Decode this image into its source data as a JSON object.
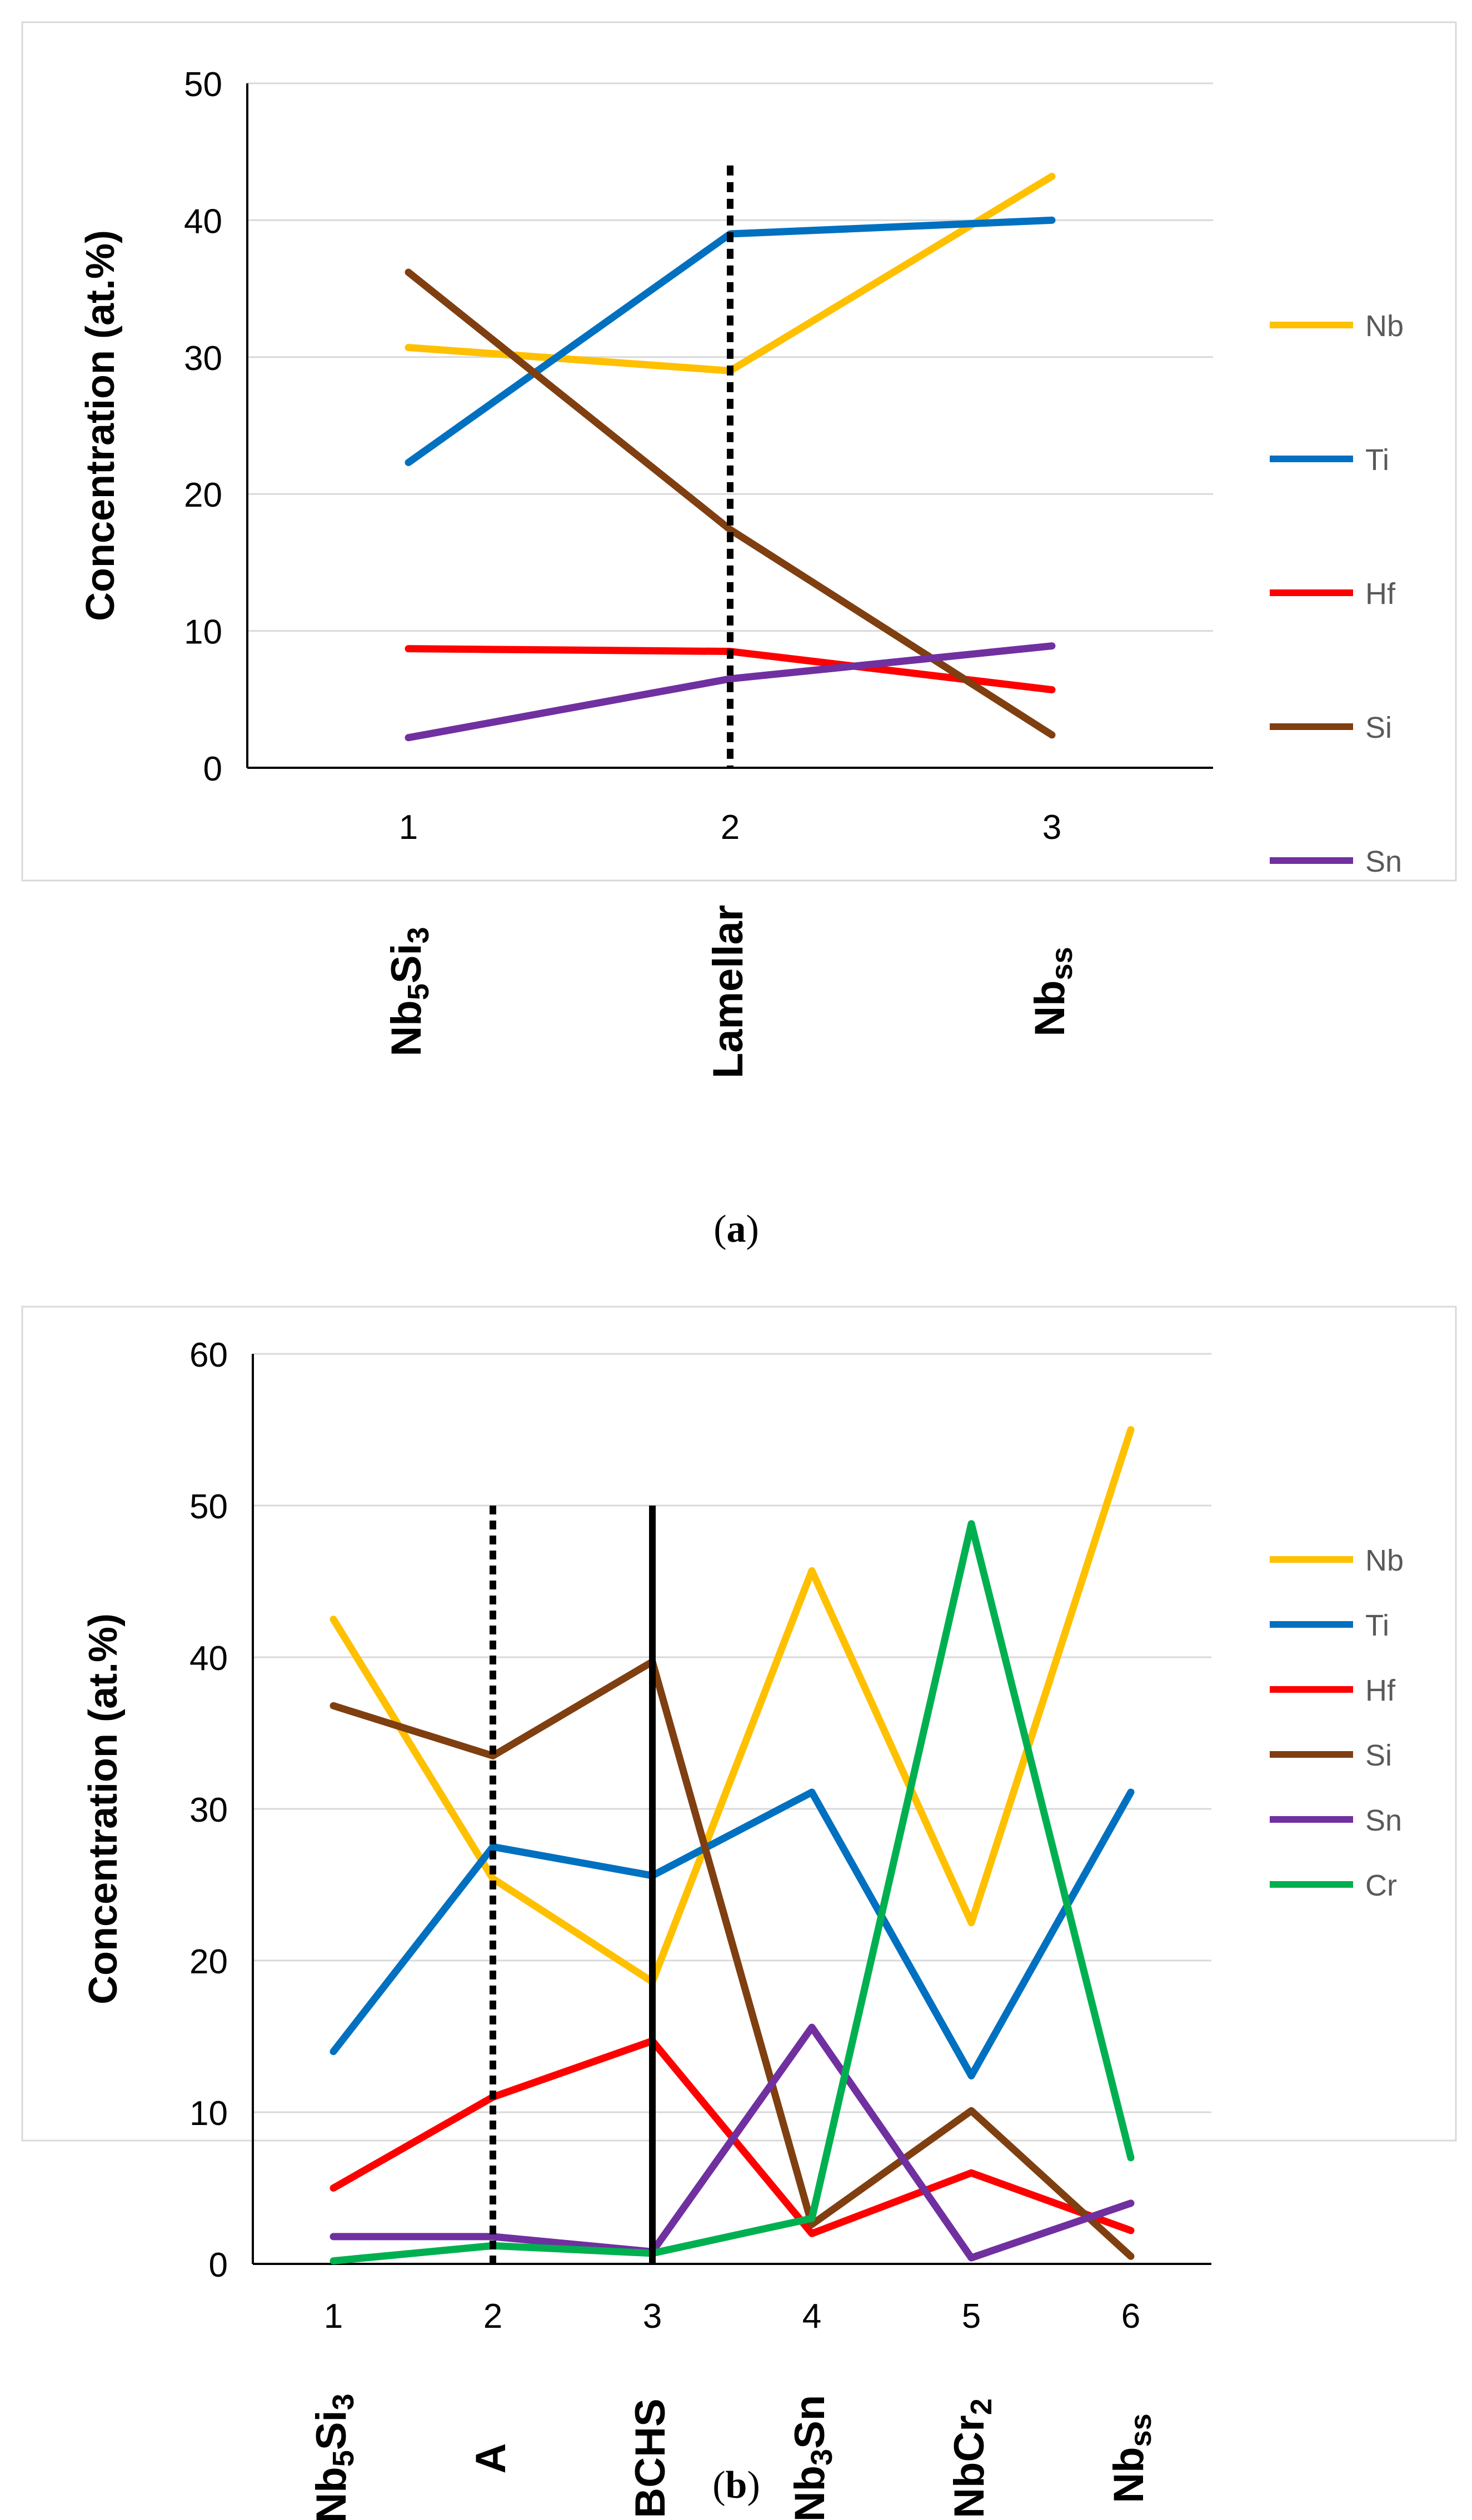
{
  "panels": [
    {
      "caption_open": "(",
      "caption_letter": "a",
      "caption_close": ")"
    },
    {
      "caption_open": "(",
      "caption_letter": "b",
      "caption_close": ")"
    }
  ],
  "chart_data": [
    {
      "type": "line",
      "title": "",
      "xlabel": "",
      "ylabel": "Concentration (at.%)",
      "x": [
        1,
        2,
        3
      ],
      "ylim": [
        0,
        50
      ],
      "yticks": [
        0,
        10,
        20,
        30,
        40,
        50
      ],
      "grid": true,
      "legend_position": "right",
      "series": [
        {
          "name": "Nb",
          "color": "#FFC000",
          "values": [
            30.7,
            29.0,
            43.2
          ]
        },
        {
          "name": "Ti",
          "color": "#0070C0",
          "values": [
            22.3,
            39.0,
            40.0
          ]
        },
        {
          "name": "Hf",
          "color": "#FF0000",
          "values": [
            8.7,
            8.5,
            5.7
          ]
        },
        {
          "name": "Si",
          "color": "#7F3F10",
          "values": [
            36.2,
            17.4,
            2.4
          ]
        },
        {
          "name": "Sn",
          "color": "#7030A0",
          "values": [
            2.2,
            6.5,
            8.9
          ]
        }
      ],
      "vertical_markers": [
        {
          "x": 2,
          "style": "dotted",
          "top_value": 44
        }
      ],
      "phase_labels": [
        {
          "base": "Nb",
          "sub1": "5",
          "mid": "Si",
          "sub2": "3"
        },
        {
          "base": "Lamellar",
          "sub1": "",
          "mid": "",
          "sub2": ""
        },
        {
          "base": "Nb",
          "sub1": "ss",
          "mid": "",
          "sub2": ""
        }
      ]
    },
    {
      "type": "line",
      "title": "",
      "xlabel": "",
      "ylabel": "Concentration (at.%)",
      "x": [
        1,
        2,
        3,
        4,
        5,
        6
      ],
      "ylim": [
        0,
        60
      ],
      "yticks": [
        0,
        10,
        20,
        30,
        40,
        50,
        60
      ],
      "grid": true,
      "legend_position": "right",
      "series": [
        {
          "name": "Nb",
          "color": "#FFC000",
          "values": [
            42.5,
            25.4,
            18.6,
            45.7,
            22.5,
            55.0
          ]
        },
        {
          "name": "Ti",
          "color": "#0070C0",
          "values": [
            14.0,
            27.5,
            25.6,
            31.1,
            12.4,
            31.1
          ]
        },
        {
          "name": "Hf",
          "color": "#FF0000",
          "values": [
            5.0,
            11.0,
            14.7,
            2.0,
            6.0,
            2.2
          ]
        },
        {
          "name": "Si",
          "color": "#7F3F10",
          "values": [
            36.8,
            33.5,
            39.7,
            2.6,
            10.1,
            0.5
          ]
        },
        {
          "name": "Sn",
          "color": "#7030A0",
          "values": [
            1.8,
            1.8,
            0.8,
            15.6,
            0.4,
            4.0
          ]
        },
        {
          "name": "Cr",
          "color": "#00B050",
          "values": [
            0.2,
            1.2,
            0.7,
            3.0,
            48.8,
            7.0
          ]
        }
      ],
      "vertical_markers": [
        {
          "x": 2,
          "style": "dotted",
          "top_value": 50
        },
        {
          "x": 3,
          "style": "solid",
          "top_value": 50
        }
      ],
      "phase_labels": [
        {
          "base": "Nb",
          "sub1": "5",
          "mid": "Si",
          "sub2": "3"
        },
        {
          "base": "A",
          "sub1": "",
          "mid": "",
          "sub2": ""
        },
        {
          "base": "BCHS",
          "sub1": "",
          "mid": "",
          "sub2": ""
        },
        {
          "base": "Nb",
          "sub1": "3",
          "mid": "Sn",
          "sub2": ""
        },
        {
          "base": "NbCr",
          "sub1": "2",
          "mid": "",
          "sub2": ""
        },
        {
          "base": "Nb",
          "sub1": "ss",
          "mid": "",
          "sub2": ""
        }
      ]
    }
  ]
}
